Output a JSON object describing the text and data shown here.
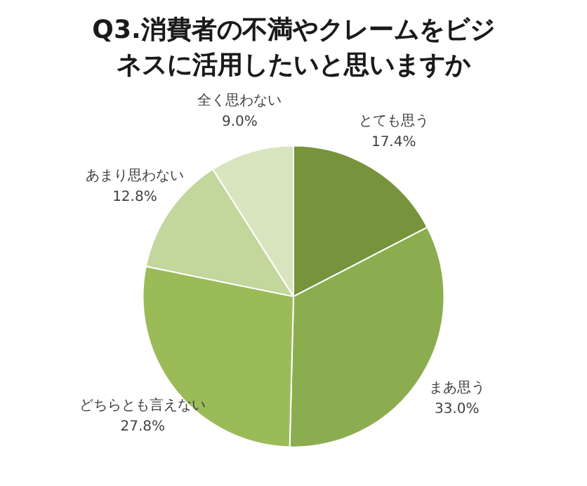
{
  "chart_data": {
    "type": "pie",
    "title": "Q3.消費者の不満やクレームをビジネスに活用したいと思いますか",
    "categories": [
      "とても思う",
      "まあ思う",
      "どちらとも言えない",
      "あまり思わない",
      "全く思わない"
    ],
    "values": [
      17.4,
      33.0,
      27.8,
      12.8,
      9.0
    ],
    "colors": [
      "#77933c",
      "#8cad4f",
      "#9bbb59",
      "#c3d69b",
      "#d7e4bd"
    ],
    "value_labels": [
      "17.4%",
      "33.0%",
      "27.8%",
      "12.8%",
      "9.0%"
    ],
    "legend": false
  }
}
